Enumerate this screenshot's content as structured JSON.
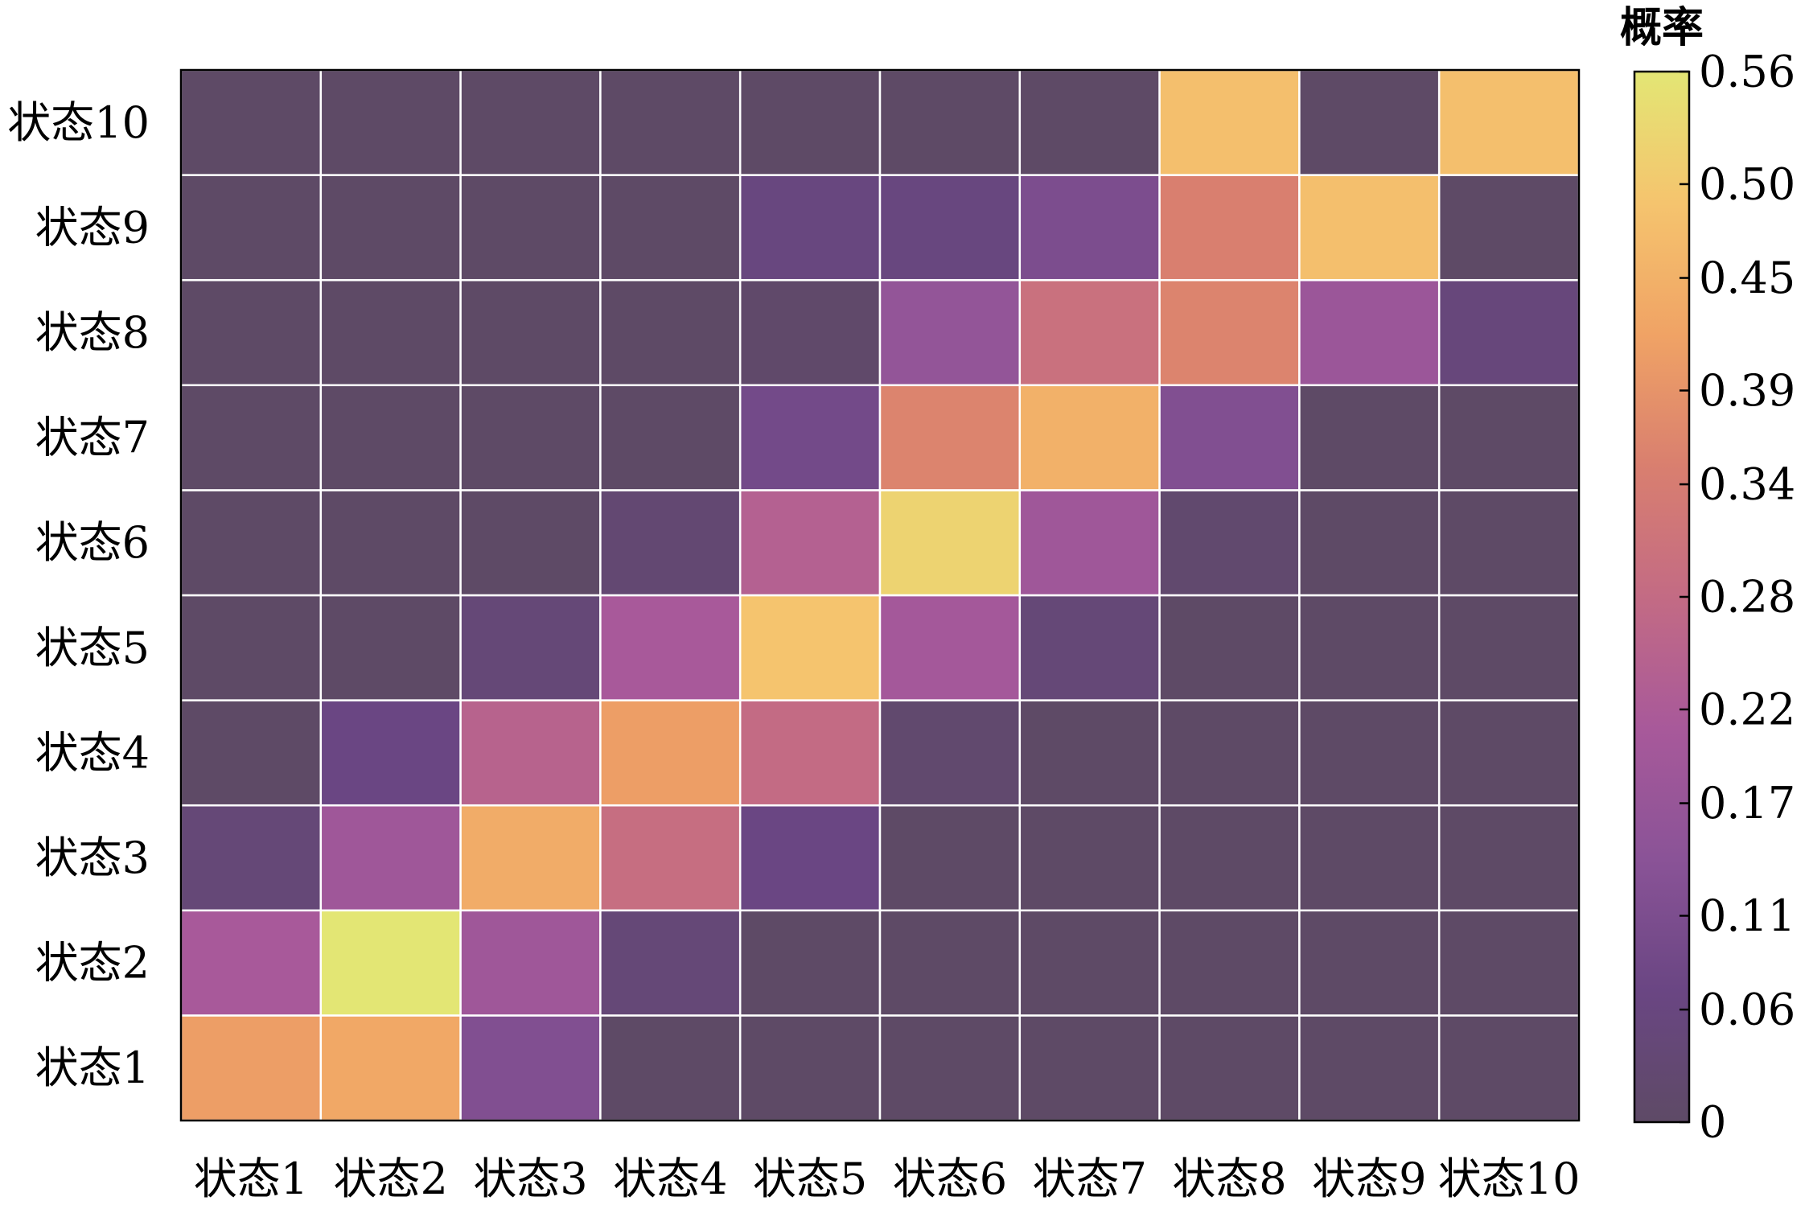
{
  "chart_data": {
    "type": "heatmap",
    "x_categories": [
      "状态1",
      "状态2",
      "状态3",
      "状态4",
      "状态5",
      "状态6",
      "状态7",
      "状态8",
      "状态9",
      "状态10"
    ],
    "y_categories": [
      "状态1",
      "状态2",
      "状态3",
      "状态4",
      "状态5",
      "状态6",
      "状态7",
      "状态8",
      "状态9",
      "状态10"
    ],
    "values": [
      [
        0.41,
        0.43,
        0.12,
        0.0,
        0.0,
        0.0,
        0.0,
        0.0,
        0.0,
        0.0
      ],
      [
        0.21,
        0.56,
        0.19,
        0.04,
        0.0,
        0.0,
        0.0,
        0.0,
        0.0,
        0.0
      ],
      [
        0.04,
        0.19,
        0.44,
        0.29,
        0.07,
        0.0,
        0.0,
        0.0,
        0.0,
        0.0
      ],
      [
        0.0,
        0.07,
        0.25,
        0.41,
        0.28,
        0.02,
        0.0,
        0.0,
        0.0,
        0.0
      ],
      [
        0.0,
        0.0,
        0.04,
        0.21,
        0.49,
        0.2,
        0.04,
        0.0,
        0.0,
        0.0
      ],
      [
        0.0,
        0.0,
        0.0,
        0.03,
        0.24,
        0.52,
        0.19,
        0.02,
        0.0,
        0.0
      ],
      [
        0.0,
        0.0,
        0.0,
        0.0,
        0.09,
        0.36,
        0.45,
        0.12,
        0.0,
        0.0
      ],
      [
        0.0,
        0.0,
        0.0,
        0.0,
        0.01,
        0.16,
        0.3,
        0.36,
        0.18,
        0.05
      ],
      [
        0.0,
        0.0,
        0.0,
        0.0,
        0.06,
        0.06,
        0.11,
        0.35,
        0.48,
        0.0
      ],
      [
        0.0,
        0.0,
        0.0,
        0.0,
        0.0,
        0.0,
        0.0,
        0.48,
        0.0,
        0.48
      ]
    ],
    "colorbar": {
      "title": "概率",
      "range": [
        0,
        0.56
      ],
      "ticks": [
        0,
        0.06,
        0.11,
        0.17,
        0.22,
        0.28,
        0.34,
        0.39,
        0.45,
        0.5,
        0.56
      ],
      "tick_labels": [
        "0",
        "0.06",
        "0.11",
        "0.17",
        "0.22",
        "0.28",
        "0.34",
        "0.39",
        "0.45",
        "0.50",
        "0.56"
      ],
      "colors": [
        "#5e4a66",
        "#6a4683",
        "#8a5397",
        "#a8599a",
        "#c36b84",
        "#d97f6f",
        "#f0a365",
        "#f5c46e",
        "#e3e674"
      ]
    },
    "grid": true,
    "legend": "right"
  }
}
